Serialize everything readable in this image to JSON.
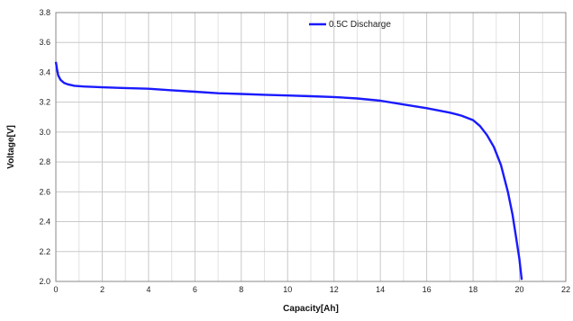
{
  "chart_data": {
    "type": "line",
    "title": "",
    "xlabel": "Capacity[Ah]",
    "ylabel": "Voltage[V]",
    "xlim": [
      0,
      22
    ],
    "ylim": [
      2.0,
      3.8
    ],
    "x_ticks": [
      "0",
      "2",
      "4",
      "6",
      "8",
      "10",
      "12",
      "14",
      "16",
      "18",
      "20",
      "22"
    ],
    "y_ticks": [
      "2.0",
      "2.2",
      "2.4",
      "2.6",
      "2.8",
      "3.0",
      "3.2",
      "3.4",
      "3.6",
      "3.8"
    ],
    "grid": true,
    "legend_position": "top-right",
    "series": [
      {
        "name": "0.5C Discharge",
        "color": "#1a1aff",
        "x": [
          0,
          0.05,
          0.1,
          0.2,
          0.35,
          0.5,
          0.8,
          1.2,
          2,
          3,
          4,
          5,
          6,
          7,
          8,
          9,
          10,
          11,
          12,
          13,
          14,
          15,
          16,
          16.5,
          17,
          17.5,
          18,
          18.3,
          18.6,
          18.9,
          19.2,
          19.5,
          19.7,
          19.85,
          20.0,
          20.1
        ],
        "y": [
          3.47,
          3.42,
          3.38,
          3.35,
          3.33,
          3.32,
          3.31,
          3.305,
          3.3,
          3.295,
          3.29,
          3.28,
          3.27,
          3.26,
          3.255,
          3.25,
          3.245,
          3.24,
          3.235,
          3.225,
          3.21,
          3.185,
          3.16,
          3.145,
          3.13,
          3.11,
          3.08,
          3.04,
          2.98,
          2.9,
          2.78,
          2.6,
          2.45,
          2.3,
          2.15,
          2.01
        ]
      }
    ]
  }
}
